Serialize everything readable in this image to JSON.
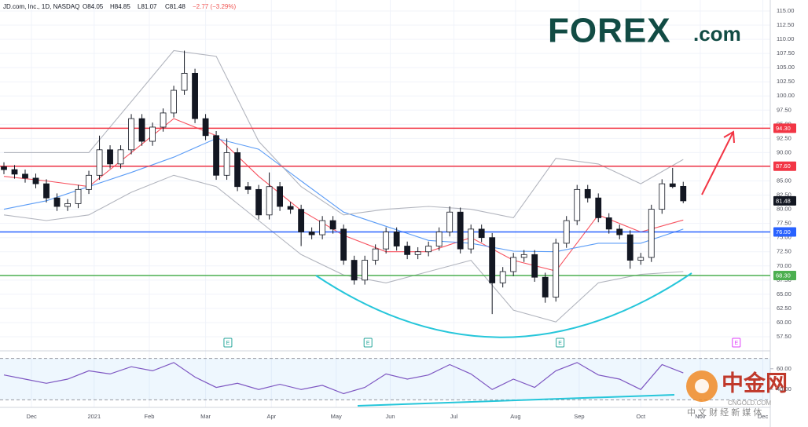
{
  "chart_data": {
    "type": "candlestick",
    "header": {
      "symbol": "JD.com, Inc., 1D, NASDAQ",
      "open": "O84.05",
      "high": "H84.85",
      "low": "L81.07",
      "close": "C81.48",
      "change": "−2.77 (−3.29%)"
    },
    "brand": {
      "name": "FOREX",
      "suffix": ".com"
    },
    "watermark": {
      "name": "中金网",
      "site": "CNGOLD.COM",
      "slogan": "中 文 财 经 新 媒 体"
    },
    "xlim": [
      0,
      72.2
    ],
    "ylim": [
      57.5,
      115
    ],
    "grid": true,
    "up_color": "#ffffff",
    "down_color": "#131722",
    "xticks": [
      {
        "value": 2.6,
        "label": "Dec"
      },
      {
        "value": 8.5,
        "label": "2021"
      },
      {
        "value": 13.7,
        "label": "Feb"
      },
      {
        "value": 19.0,
        "label": "Mar"
      },
      {
        "value": 25.2,
        "label": "Apr"
      },
      {
        "value": 31.3,
        "label": "May"
      },
      {
        "value": 36.4,
        "label": "Jun"
      },
      {
        "value": 42.4,
        "label": "Jul"
      },
      {
        "value": 48.2,
        "label": "Aug"
      },
      {
        "value": 54.2,
        "label": "Sep"
      },
      {
        "value": 60.0,
        "label": "Oct"
      },
      {
        "value": 65.6,
        "label": "Nov"
      },
      {
        "value": 71.5,
        "label": "Dec"
      }
    ],
    "yticks": [
      {
        "value": 57.5,
        "label": "57.50"
      },
      {
        "value": 60,
        "label": "60.00"
      },
      {
        "value": 62.5,
        "label": "62.50"
      },
      {
        "value": 65,
        "label": "65.00"
      },
      {
        "value": 67.5,
        "label": "67.50"
      },
      {
        "value": 70,
        "label": "70.00"
      },
      {
        "value": 72.5,
        "label": "72.50"
      },
      {
        "value": 75,
        "label": "75.00"
      },
      {
        "value": 77.5,
        "label": "77.50"
      },
      {
        "value": 80,
        "label": "80.00"
      },
      {
        "value": 82.5,
        "label": "82.50"
      },
      {
        "value": 85,
        "label": "85.00"
      },
      {
        "value": 87.5,
        "label": "87.50"
      },
      {
        "value": 90,
        "label": "90.00"
      },
      {
        "value": 92.5,
        "label": "92.50"
      },
      {
        "value": 95,
        "label": "95.00"
      },
      {
        "value": 97.5,
        "label": "97.50"
      },
      {
        "value": 100,
        "label": "100.00"
      },
      {
        "value": 102.5,
        "label": "102.50"
      },
      {
        "value": 105,
        "label": "105.00"
      },
      {
        "value": 107.5,
        "label": "107.50"
      },
      {
        "value": 110,
        "label": "110.00"
      },
      {
        "value": 112.5,
        "label": "112.50"
      },
      {
        "value": 115,
        "label": "115.00"
      }
    ],
    "candles": [
      [
        87.5,
        88.3,
        86.2,
        87
      ],
      [
        87,
        87.8,
        85.4,
        86.2
      ],
      [
        86.2,
        87,
        84.7,
        85.5
      ],
      [
        85.5,
        86.3,
        83.7,
        84.5
      ],
      [
        84.5,
        85.3,
        81.2,
        82
      ],
      [
        82,
        82.8,
        79.7,
        80.5
      ],
      [
        80.5,
        81.8,
        79.7,
        81
      ],
      [
        81,
        84.3,
        80.2,
        83.5
      ],
      [
        83.5,
        86.8,
        82.7,
        86
      ],
      [
        86,
        93,
        85.2,
        90.5
      ],
      [
        90.5,
        91.3,
        87.2,
        88
      ],
      [
        88,
        91.3,
        87.2,
        90.5
      ],
      [
        90.5,
        96.8,
        89.7,
        96
      ],
      [
        96,
        96.8,
        91.2,
        92
      ],
      [
        92,
        95.3,
        91.2,
        94.5
      ],
      [
        94.5,
        97.8,
        93.7,
        97
      ],
      [
        97,
        101.8,
        96.2,
        101
      ],
      [
        101,
        108,
        100.2,
        104
      ],
      [
        104,
        104.8,
        95.2,
        96
      ],
      [
        96,
        96.8,
        92.2,
        93
      ],
      [
        93,
        93.8,
        85.2,
        86
      ],
      [
        86,
        92.5,
        85.2,
        90
      ],
      [
        90,
        90.8,
        83.2,
        84
      ],
      [
        84,
        84.8,
        82.7,
        83.5
      ],
      [
        83.5,
        84.3,
        78.2,
        79
      ],
      [
        79,
        86.5,
        78.2,
        84
      ],
      [
        84,
        84.8,
        79.7,
        80.5
      ],
      [
        80.5,
        81.3,
        79.2,
        80
      ],
      [
        80,
        80.8,
        73.5,
        76
      ],
      [
        76,
        76.8,
        74.7,
        75.5
      ],
      [
        75.5,
        78.8,
        74.7,
        78
      ],
      [
        78,
        78.8,
        75.7,
        76.5
      ],
      [
        76.5,
        77.3,
        70.2,
        71
      ],
      [
        71,
        71.8,
        66.7,
        67.5
      ],
      [
        67.5,
        71.8,
        66.7,
        71
      ],
      [
        71,
        73.8,
        70.2,
        73
      ],
      [
        73,
        76.8,
        72.2,
        76
      ],
      [
        76,
        76.8,
        72.7,
        73.5
      ],
      [
        73.5,
        74.3,
        71.2,
        72
      ],
      [
        72,
        73.3,
        71.2,
        72.5
      ],
      [
        72.5,
        74.3,
        71.7,
        73.5
      ],
      [
        73.5,
        76.8,
        72.7,
        76
      ],
      [
        76,
        80.5,
        75.2,
        79.5
      ],
      [
        79.5,
        80.3,
        72.2,
        73
      ],
      [
        73,
        77.3,
        72.2,
        76.5
      ],
      [
        76.5,
        77.3,
        74.2,
        75
      ],
      [
        75,
        75.8,
        61.5,
        67
      ],
      [
        67,
        69.8,
        66.2,
        69
      ],
      [
        69,
        72.3,
        68.2,
        71.5
      ],
      [
        71.5,
        72.8,
        70.7,
        72
      ],
      [
        72,
        72.8,
        67.2,
        68
      ],
      [
        68,
        68.8,
        63.5,
        64.5
      ],
      [
        64.5,
        74.8,
        63.7,
        74
      ],
      [
        74,
        78.8,
        73.2,
        78
      ],
      [
        78,
        84.3,
        77.2,
        83.5
      ],
      [
        83.5,
        84.3,
        81.2,
        82
      ],
      [
        82,
        82.8,
        77.7,
        78.5
      ],
      [
        78.5,
        79.3,
        75.7,
        76.5
      ],
      [
        76.5,
        77.3,
        74.7,
        75.5
      ],
      [
        75.5,
        76.3,
        69.5,
        71
      ],
      [
        71,
        72.3,
        70.2,
        71.5
      ],
      [
        71.5,
        80.8,
        70.7,
        80
      ],
      [
        80,
        85.3,
        79.2,
        84.5
      ],
      [
        84.5,
        87.3,
        83.7,
        84
      ],
      [
        84.05,
        84.85,
        81.07,
        81.48
      ]
    ],
    "series": [
      {
        "color": "#f7525f",
        "x": [
          0,
          4,
          8,
          12,
          16,
          20,
          24,
          28,
          32,
          36,
          40,
          44,
          48,
          52,
          56,
          60,
          64
        ],
        "values": [
          85.8,
          85,
          84,
          90,
          96,
          93,
          85.8,
          79.8,
          75.4,
          72.5,
          72.5,
          75,
          71,
          69.1,
          79,
          76,
          78.1
        ]
      },
      {
        "color": "#5b9cf6",
        "x": [
          0,
          4,
          8,
          12,
          16,
          20,
          24,
          28,
          32,
          36,
          40,
          44,
          48,
          52,
          56,
          60,
          64
        ],
        "values": [
          80,
          81.5,
          84,
          86.5,
          89.2,
          92.5,
          90.6,
          85,
          79.5,
          77,
          74.5,
          74,
          72.6,
          72.5,
          74,
          74,
          76.5
        ]
      },
      {
        "color": "#b2b5be",
        "x": [
          0,
          4,
          8,
          12,
          16,
          20,
          24,
          28,
          32,
          36,
          40,
          44,
          48,
          52,
          56,
          60,
          64
        ],
        "values": [
          90,
          90,
          90,
          99,
          108,
          107,
          92,
          84,
          79,
          80,
          80.5,
          80,
          78.5,
          89,
          88,
          84.5,
          88.8
        ]
      },
      {
        "color": "#b2b5be",
        "x": [
          0,
          4,
          8,
          12,
          16,
          20,
          24,
          28,
          32,
          36,
          40,
          44,
          48,
          52,
          56,
          60,
          64
        ],
        "values": [
          79,
          78,
          79,
          83,
          86,
          84,
          78,
          72,
          68.4,
          67,
          69,
          71,
          62.2,
          60.1,
          67,
          68.5,
          69
        ]
      }
    ],
    "levels": [
      {
        "value": 94.3,
        "label": "94.30",
        "color": "#f23645"
      },
      {
        "value": 87.6,
        "label": "87.60",
        "color": "#f23645"
      },
      {
        "value": 76,
        "label": "76.00",
        "color": "#2962ff"
      },
      {
        "value": 68.3,
        "label": "68.30",
        "color": "#4caf50"
      },
      {
        "value": 81.48,
        "label": "81.48",
        "color": "#131722"
      }
    ],
    "events": [
      {
        "x": 21.1,
        "label": "E",
        "color": "#26a69a"
      },
      {
        "x": 34.3,
        "label": "E",
        "color": "#26a69a"
      },
      {
        "x": 52.4,
        "label": "E",
        "color": "#26a69a"
      },
      {
        "x": 69.0,
        "label": "E",
        "color": "#e040fb"
      }
    ],
    "rsi": {
      "color": "#7e57c2",
      "ylim": [
        25,
        75
      ],
      "yticks": [
        {
          "value": 60,
          "label": "60.00"
        },
        {
          "value": 40,
          "label": "40.00"
        }
      ],
      "bands": [
        30,
        70
      ],
      "x": [
        0,
        2,
        4,
        6,
        8,
        10,
        12,
        14,
        16,
        18,
        20,
        22,
        24,
        26,
        28,
        30,
        32,
        34,
        36,
        38,
        40,
        42,
        44,
        46,
        48,
        50,
        52,
        54,
        56,
        58,
        60,
        62,
        64
      ],
      "values": [
        54,
        50,
        46,
        50,
        58,
        55,
        62,
        58,
        66,
        52,
        42,
        46,
        40,
        45,
        40,
        44,
        36,
        42,
        55,
        50,
        54,
        64,
        55,
        40,
        50,
        42,
        58,
        66,
        54,
        50,
        40,
        64,
        56
      ]
    }
  }
}
